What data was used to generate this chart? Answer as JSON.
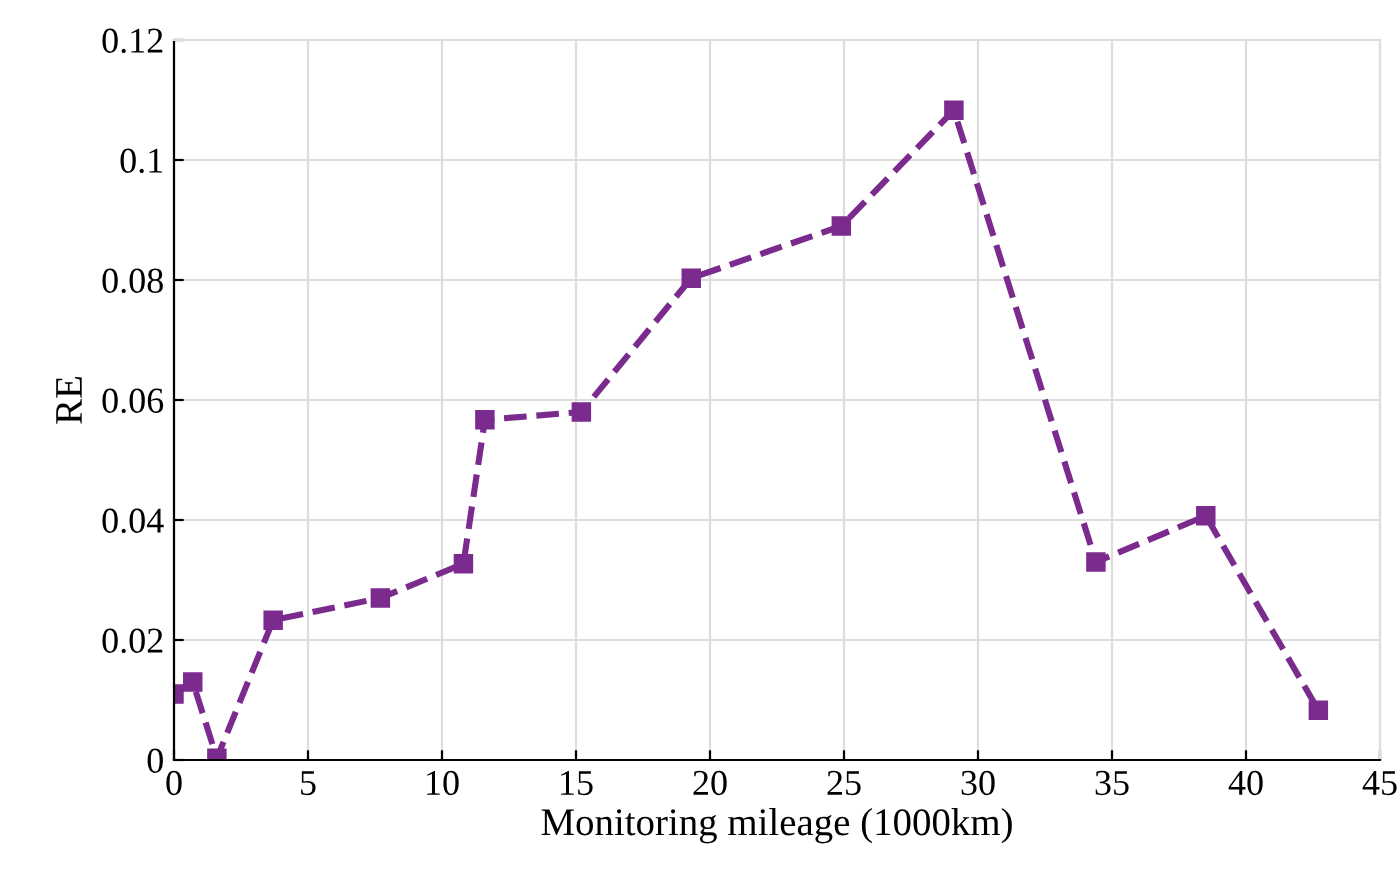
{
  "chart_data": {
    "type": "line",
    "xlabel": "Monitoring mileage (1000km)",
    "ylabel": "RE",
    "x": [
      0,
      0.7,
      1.6,
      3.7,
      7.7,
      10.8,
      11.6,
      15.2,
      19.3,
      24.9,
      29.1,
      34.4,
      38.5,
      42.7
    ],
    "series": [
      {
        "color": "#7b2a8e",
        "values": [
          0.011,
          0.013,
          0.0003,
          0.0233,
          0.027,
          0.0327,
          0.0567,
          0.058,
          0.0803,
          0.089,
          0.1083,
          0.033,
          0.0407,
          0.0083
        ]
      }
    ],
    "xlim": [
      0,
      45
    ],
    "xticks": [
      0,
      5,
      10,
      15,
      20,
      25,
      30,
      35,
      40,
      45
    ],
    "ylim": [
      0,
      0.12
    ],
    "yticks": [
      0,
      0.02,
      0.04,
      0.06,
      0.08,
      0.1,
      0.12
    ],
    "grid": true,
    "marker": "square",
    "line_style": "dashed",
    "legend": false
  }
}
